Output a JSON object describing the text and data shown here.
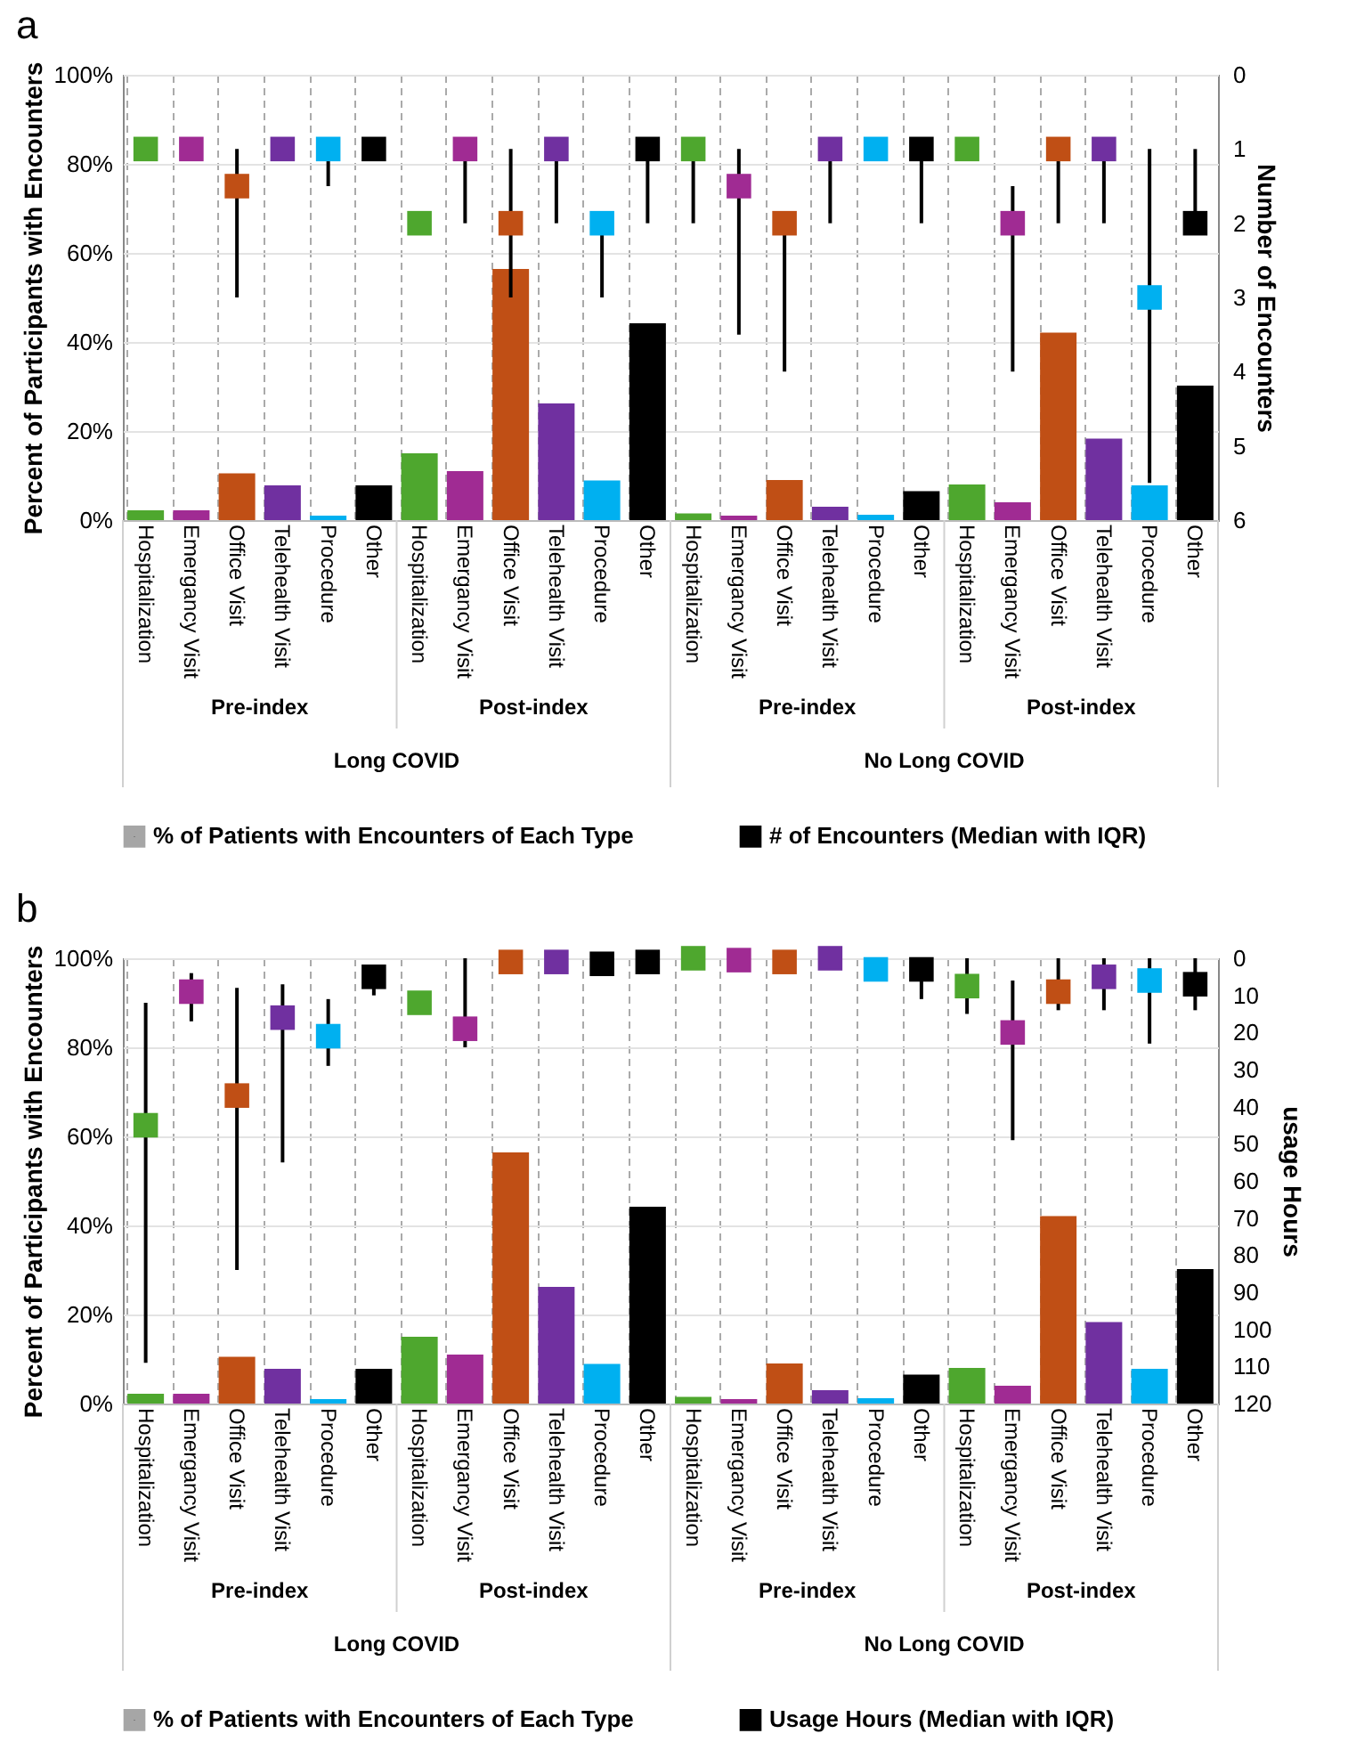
{
  "chart_data": [
    {
      "type": "bar",
      "title": "a",
      "ylabel": "Percent of Participants with Encounters",
      "y2label": "Number of Encounters",
      "categories": [
        "Hospitalization",
        "Emergancy Visit",
        "Office Visit",
        "Telehealth Visit",
        "Procedure",
        "Other",
        "Hospitalization",
        "Emergancy Visit",
        "Office Visit",
        "Telehealth Visit",
        "Procedure",
        "Other",
        "Hospitalization",
        "Emergancy Visit",
        "Office Visit",
        "Telehealth Visit",
        "Procedure",
        "Other",
        "Hospitalization",
        "Emergancy Visit",
        "Office Visit",
        "Telehealth Visit",
        "Procedure",
        "Other"
      ],
      "series": [
        {
          "name": "% of Patients with Encounters of Each Type",
          "color": "#a6a6a6",
          "colors": [
            "#4ea72e",
            "#a02b93",
            "#c04f15",
            "#7030a0",
            "#00b0f0",
            "#000000",
            "#4ea72e",
            "#a02b93",
            "#c04f15",
            "#7030a0",
            "#00b0f0",
            "#000000",
            "#4ea72e",
            "#a02b93",
            "#c04f15",
            "#7030a0",
            "#00b0f0",
            "#000000",
            "#4ea72e",
            "#a02b93",
            "#c04f15",
            "#7030a0",
            "#00b0f0",
            "#000000"
          ],
          "values": [
            2.2,
            2.2,
            10.5,
            7.8,
            1,
            7.8,
            15,
            11,
            56.4,
            26.2,
            8.9,
            44.2,
            1.5,
            1,
            9,
            3,
            1.2,
            6.5,
            8,
            4,
            42.1,
            18.3,
            7.8,
            30.2
          ]
        },
        {
          "name": "# of Encounters (Median with IQR)",
          "type": "scatter",
          "axis": "y2",
          "color": "#000000",
          "colors": [
            "#4ea72e",
            "#a02b93",
            "#c04f15",
            "#7030a0",
            "#00b0f0",
            "#000000",
            "#4ea72e",
            "#a02b93",
            "#c04f15",
            "#7030a0",
            "#00b0f0",
            "#000000",
            "#4ea72e",
            "#a02b93",
            "#c04f15",
            "#7030a0",
            "#00b0f0",
            "#000000",
            "#4ea72e",
            "#a02b93",
            "#c04f15",
            "#7030a0",
            "#00b0f0",
            "#000000"
          ],
          "values": [
            1,
            1,
            1.5,
            1,
            1,
            1,
            2,
            1,
            2,
            1,
            2,
            1,
            1,
            1.5,
            2,
            1,
            1,
            1,
            1,
            2,
            1,
            1,
            3,
            2
          ],
          "errors": [
            null,
            null,
            [
              1,
              3
            ],
            null,
            [
              1,
              1.5
            ],
            null,
            null,
            [
              1,
              2
            ],
            [
              1,
              3
            ],
            [
              1,
              2
            ],
            [
              2,
              3
            ],
            [
              1,
              2
            ],
            [
              1,
              2
            ],
            [
              1,
              3.5
            ],
            [
              2,
              4
            ],
            [
              1,
              2
            ],
            null,
            [
              1,
              2
            ],
            null,
            [
              1.5,
              4
            ],
            [
              1,
              2
            ],
            [
              1,
              2
            ],
            [
              1,
              5.5
            ],
            [
              1,
              2
            ]
          ]
        }
      ],
      "ylim": [
        0,
        100
      ],
      "yticks": [
        {
          "value": 0,
          "label": "0%"
        },
        {
          "value": 20,
          "label": "20%"
        },
        {
          "value": 40,
          "label": "40%"
        },
        {
          "value": 60,
          "label": "60%"
        },
        {
          "value": 80,
          "label": "80%"
        },
        {
          "value": 100,
          "label": "100%"
        }
      ],
      "y2lim": [
        6,
        0
      ],
      "y2ticks": [
        0,
        1,
        2,
        3,
        4,
        5,
        6
      ],
      "annotations": [
        "Pre-index",
        "Post-index",
        "Pre-index",
        "Post-index",
        "Long COVID",
        "No Long COVID"
      ],
      "grid": true,
      "legend": "bottom",
      "marker": "square"
    },
    {
      "type": "bar",
      "title": "b",
      "ylabel": "Percent of Participants with Encounters",
      "y2label": "usage Hours",
      "categories": [
        "Hospitalization",
        "Emergancy Visit",
        "Office Visit",
        "Telehealth Visit",
        "Procedure",
        "Other",
        "Hospitalization",
        "Emergancy Visit",
        "Office Visit",
        "Telehealth Visit",
        "Procedure",
        "Other",
        "Hospitalization",
        "Emergancy Visit",
        "Office Visit",
        "Telehealth Visit",
        "Procedure",
        "Other",
        "Hospitalization",
        "Emergancy Visit",
        "Office Visit",
        "Telehealth Visit",
        "Procedure",
        "Other"
      ],
      "series": [
        {
          "name": "% of Patients with Encounters of Each Type",
          "color": "#a6a6a6",
          "colors": [
            "#4ea72e",
            "#a02b93",
            "#c04f15",
            "#7030a0",
            "#00b0f0",
            "#000000",
            "#4ea72e",
            "#a02b93",
            "#c04f15",
            "#7030a0",
            "#00b0f0",
            "#000000",
            "#4ea72e",
            "#a02b93",
            "#c04f15",
            "#7030a0",
            "#00b0f0",
            "#000000",
            "#4ea72e",
            "#a02b93",
            "#c04f15",
            "#7030a0",
            "#00b0f0",
            "#000000"
          ],
          "values": [
            2.2,
            2.2,
            10.5,
            7.8,
            1,
            7.8,
            15,
            11,
            56.4,
            26.2,
            8.9,
            44.2,
            1.5,
            1,
            9,
            3,
            1.2,
            6.5,
            8,
            4,
            42.1,
            18.3,
            7.8,
            30.2
          ]
        },
        {
          "name": "Usage Hours (Median with IQR)",
          "type": "scatter",
          "axis": "y2",
          "color": "#000000",
          "colors": [
            "#4ea72e",
            "#a02b93",
            "#c04f15",
            "#7030a0",
            "#00b0f0",
            "#000000",
            "#4ea72e",
            "#a02b93",
            "#c04f15",
            "#7030a0",
            "#000000",
            "#000000",
            "#4ea72e",
            "#a02b93",
            "#c04f15",
            "#7030a0",
            "#00b0f0",
            "#000000",
            "#4ea72e",
            "#a02b93",
            "#c04f15",
            "#7030a0",
            "#00b0f0",
            "#000000"
          ],
          "values": [
            45,
            9,
            37,
            16,
            21,
            5,
            12,
            19,
            1,
            1,
            1.5,
            1,
            0,
            0.5,
            1,
            0,
            3,
            3,
            7.5,
            20,
            9,
            5,
            6,
            7
          ],
          "errors": [
            [
              12,
              109
            ],
            [
              4,
              17
            ],
            [
              8,
              84
            ],
            [
              7,
              55
            ],
            [
              11,
              29
            ],
            [
              5,
              10
            ],
            null,
            [
              0,
              24
            ],
            null,
            null,
            null,
            null,
            null,
            null,
            null,
            null,
            null,
            [
              3,
              11
            ],
            [
              0,
              15
            ],
            [
              6,
              49
            ],
            [
              0,
              14
            ],
            [
              0,
              14
            ],
            [
              0,
              23
            ],
            [
              0,
              14
            ]
          ]
        }
      ],
      "ylim": [
        0,
        100
      ],
      "yticks": [
        {
          "value": 0,
          "label": "0%"
        },
        {
          "value": 20,
          "label": "20%"
        },
        {
          "value": 40,
          "label": "40%"
        },
        {
          "value": 60,
          "label": "60%"
        },
        {
          "value": 80,
          "label": "80%"
        },
        {
          "value": 100,
          "label": "100%"
        }
      ],
      "y2lim": [
        120,
        0
      ],
      "y2ticks": [
        0,
        10,
        20,
        30,
        40,
        50,
        60,
        70,
        80,
        90,
        100,
        110,
        120
      ],
      "annotations": [
        "Pre-index",
        "Post-index",
        "Pre-index",
        "Post-index",
        "Long COVID",
        "No Long COVID"
      ],
      "grid": true,
      "legend": "bottom",
      "marker": "square"
    }
  ]
}
